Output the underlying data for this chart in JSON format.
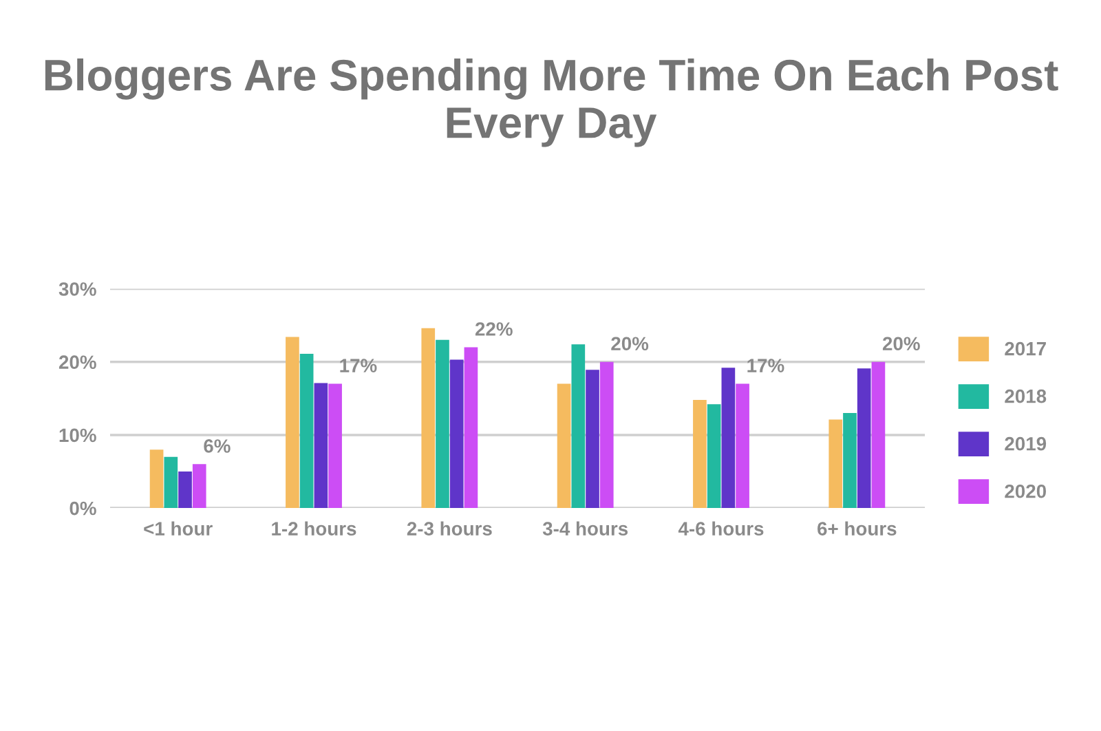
{
  "chart_data": {
    "type": "bar",
    "title": "Bloggers Are Spending More Time On Each Post Every Day",
    "categories": [
      "<1 hour",
      "1-2 hours",
      "2-3 hours",
      "3-4 hours",
      "4-6 hours",
      "6+ hours"
    ],
    "series": [
      {
        "name": "2017",
        "color": "#f5bb5f",
        "values": [
          8,
          23.4,
          24.6,
          17,
          14.8,
          12.1
        ]
      },
      {
        "name": "2018",
        "color": "#22b9a0",
        "values": [
          7,
          21.1,
          23,
          22.4,
          14.2,
          13
        ]
      },
      {
        "name": "2019",
        "color": "#5f35c9",
        "values": [
          5,
          17.1,
          20.3,
          18.9,
          19.2,
          19.1
        ]
      },
      {
        "name": "2020",
        "color": "#cc4df5",
        "values": [
          6,
          17,
          22,
          20,
          17,
          20
        ],
        "value_labels": [
          "6%",
          "17%",
          "22%",
          "20%",
          "17%",
          "20%"
        ]
      }
    ],
    "ylim": [
      0,
      30
    ],
    "yticks": [
      {
        "value": 0,
        "label": "0%"
      },
      {
        "value": 10,
        "label": "10%"
      },
      {
        "value": 20,
        "label": "20%"
      },
      {
        "value": 30,
        "label": "30%"
      }
    ],
    "grid": "y",
    "legend": "right"
  }
}
